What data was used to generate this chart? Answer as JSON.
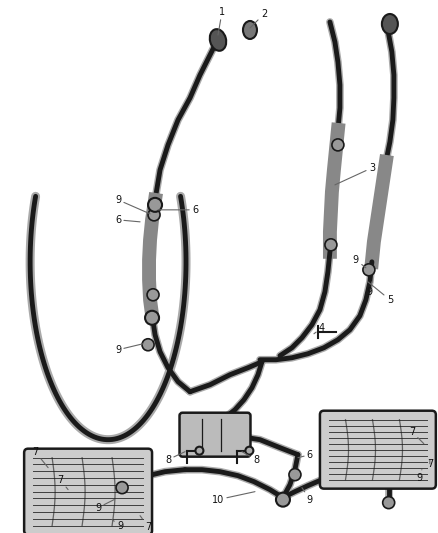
{
  "background_color": "#ffffff",
  "line_color": "#1a1a1a",
  "label_color": "#111111",
  "figsize": [
    4.38,
    5.33
  ],
  "dpi": 100,
  "pipe_lw": 3.5,
  "pipe_color": "#444444",
  "pipe_fill": "#aaaaaa",
  "muffler_fill": "#cccccc",
  "cat_fill": "#888888",
  "hanger_color": "#333333",
  "label_fontsize": 7,
  "label_line_color": "#555555"
}
